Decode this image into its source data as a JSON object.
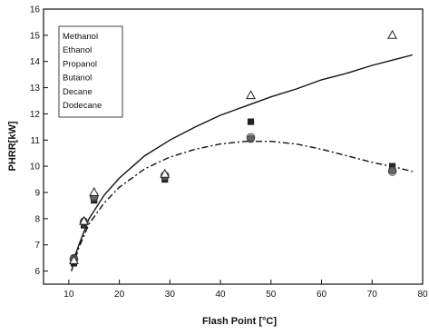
{
  "chart_data": {
    "type": "scatter",
    "xlabel": "Flash Point [°C]",
    "ylabel": "PHRR[kW]",
    "xlim": [
      5,
      80
    ],
    "ylim": [
      5.5,
      16
    ],
    "xticks": [
      10,
      20,
      30,
      40,
      50,
      60,
      70,
      80
    ],
    "yticks": [
      6,
      7,
      8,
      9,
      10,
      11,
      12,
      13,
      14,
      15,
      16
    ],
    "grid": false,
    "legend_position": "top-left",
    "legend": [
      "Methanol",
      "Ethanol",
      "Propanol",
      "Butanol",
      "Decane",
      "Dodecane"
    ],
    "series": [
      {
        "marker": "open-triangle",
        "points": [
          [
            11,
            6.4
          ],
          [
            13,
            7.9
          ],
          [
            15,
            9.0
          ],
          [
            29,
            9.7
          ],
          [
            46,
            12.7
          ],
          [
            74,
            15.0
          ]
        ]
      },
      {
        "marker": "filled-square",
        "points": [
          [
            11,
            6.3
          ],
          [
            13,
            7.75
          ],
          [
            15,
            8.7
          ],
          [
            29,
            9.5
          ],
          [
            46,
            11.7
          ],
          [
            74,
            10.0
          ]
        ]
      },
      {
        "marker": "filled-circle",
        "points": [
          [
            11,
            6.5
          ],
          [
            13,
            7.9
          ],
          [
            15,
            8.8
          ],
          [
            29,
            9.6
          ],
          [
            46,
            11.05
          ],
          [
            74,
            9.85
          ]
        ]
      },
      {
        "marker": "open-circle",
        "points": [
          [
            11,
            6.45
          ],
          [
            13,
            7.85
          ],
          [
            15,
            8.85
          ],
          [
            29,
            9.65
          ],
          [
            46,
            11.1
          ],
          [
            74,
            9.8
          ]
        ]
      }
    ],
    "fit_lines": [
      {
        "style": "solid",
        "points": [
          [
            10.5,
            6.2
          ],
          [
            12,
            7.0
          ],
          [
            14,
            8.0
          ],
          [
            17,
            8.9
          ],
          [
            20,
            9.55
          ],
          [
            25,
            10.4
          ],
          [
            30,
            11.0
          ],
          [
            35,
            11.5
          ],
          [
            40,
            11.95
          ],
          [
            45,
            12.3
          ],
          [
            50,
            12.65
          ],
          [
            55,
            12.95
          ],
          [
            60,
            13.3
          ],
          [
            65,
            13.55
          ],
          [
            70,
            13.85
          ],
          [
            75,
            14.1
          ],
          [
            78,
            14.25
          ]
        ]
      },
      {
        "style": "dash-dot",
        "points": [
          [
            10.5,
            6.0
          ],
          [
            12,
            6.9
          ],
          [
            14,
            7.8
          ],
          [
            17,
            8.6
          ],
          [
            20,
            9.2
          ],
          [
            25,
            9.9
          ],
          [
            30,
            10.35
          ],
          [
            35,
            10.65
          ],
          [
            40,
            10.85
          ],
          [
            45,
            10.95
          ],
          [
            50,
            10.95
          ],
          [
            55,
            10.85
          ],
          [
            60,
            10.65
          ],
          [
            65,
            10.4
          ],
          [
            70,
            10.15
          ],
          [
            75,
            9.95
          ],
          [
            78,
            9.8
          ]
        ]
      }
    ]
  }
}
